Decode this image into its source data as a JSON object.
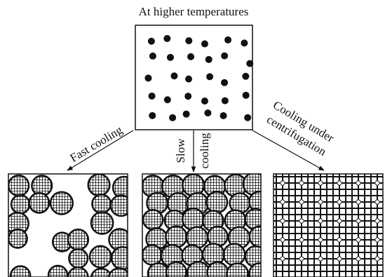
{
  "title": "At higher temperatures",
  "arrows": {
    "fast": "Fast cooling",
    "slow": [
      "Slow",
      "cooling"
    ],
    "centrifugation": [
      "Cooling under",
      "centrifugation"
    ]
  }
}
